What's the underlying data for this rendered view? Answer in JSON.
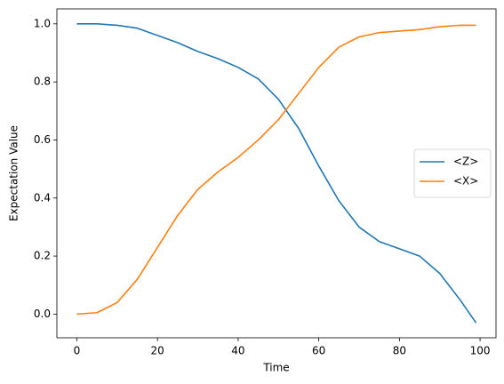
{
  "chart_data": {
    "type": "line",
    "xlabel": "Time",
    "ylabel": "Expectation Value",
    "x": [
      0,
      5,
      10,
      15,
      20,
      25,
      30,
      35,
      40,
      45,
      50,
      55,
      60,
      65,
      70,
      75,
      80,
      85,
      90,
      95,
      99
    ],
    "series": [
      {
        "name": "<Z>",
        "color": "#1f77b4",
        "values": [
          1.0,
          1.0,
          0.995,
          0.985,
          0.96,
          0.935,
          0.905,
          0.88,
          0.85,
          0.81,
          0.74,
          0.64,
          0.51,
          0.39,
          0.3,
          0.25,
          0.225,
          0.2,
          0.14,
          0.05,
          -0.03
        ]
      },
      {
        "name": "<X>",
        "color": "#ff7f0e",
        "values": [
          0.0,
          0.005,
          0.04,
          0.12,
          0.23,
          0.34,
          0.43,
          0.49,
          0.54,
          0.6,
          0.67,
          0.76,
          0.85,
          0.92,
          0.955,
          0.97,
          0.975,
          0.98,
          0.99,
          0.995,
          0.995
        ]
      }
    ],
    "xlim": [
      -4.95,
      103.95
    ],
    "ylim": [
      -0.0815,
      1.0515
    ],
    "xticks": [
      0,
      20,
      40,
      60,
      80,
      100
    ],
    "yticks": [
      {
        "value": 0,
        "label": "0.0"
      },
      0.2,
      0.4,
      0.6,
      0.8,
      {
        "value": 1,
        "label": "1.0"
      }
    ],
    "legend": "right"
  }
}
